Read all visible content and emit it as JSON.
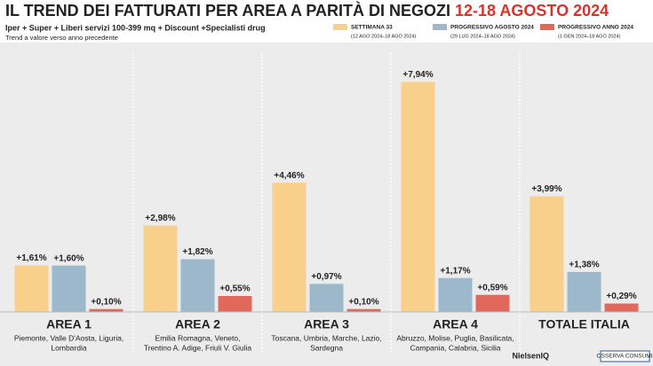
{
  "chart_data": {
    "type": "bar",
    "title": "IL TREND DEI FATTURATI PER AREA A PARITÀ DI NEGOZI",
    "title_highlight": "12-18 AGOSTO 2024",
    "subtitle": "Iper + Super + Liberi servizi 100-399 mq + Discount +Specialisti drug",
    "note": "Trend a valore verso anno precedente",
    "categories": [
      "AREA 1",
      "AREA 2",
      "AREA 3",
      "AREA 4",
      "TOTALE ITALIA"
    ],
    "regions": [
      [
        "Piemonte, Valle D'Aosta, Liguria,",
        "Lombardia"
      ],
      [
        "Emilia Romagna, Veneto,",
        "Trentino A. Adige, Friuli V. Giulia"
      ],
      [
        "Toscana, Umbria, Marche, Lazio,",
        "Sardegna"
      ],
      [
        "Abruzzo, Molise, Puglia, Basilicata,",
        "Campania, Calabria, Sicilia"
      ],
      []
    ],
    "series": [
      {
        "name": "SETTIMANA 33",
        "period": "(12 AGO 2024–18 AGO 2024)",
        "color": "#f8cf8b",
        "values": [
          1.61,
          2.98,
          4.46,
          7.94,
          3.99
        ],
        "value_labels": [
          "+1,61%",
          "+2,98%",
          "+4,46%",
          "+7,94%",
          "+3,99%"
        ]
      },
      {
        "name": "PROGRESSIVO AGOSTO 2024",
        "period": "(29 LUG 2024–18 AGO 2024)",
        "color": "#9db8cb",
        "values": [
          1.6,
          1.82,
          0.97,
          1.17,
          1.38
        ],
        "value_labels": [
          "+1,60%",
          "+1,82%",
          "+0,97%",
          "+1,17%",
          "+1,38%"
        ]
      },
      {
        "name": "PROGRESSIVO ANNO 2024",
        "period": "(1 GEN 2024–18 AGO 2024)",
        "color": "#e2685c",
        "values": [
          0.1,
          0.55,
          0.1,
          0.59,
          0.29
        ],
        "value_labels": [
          "+0,10%",
          "+0,55%",
          "+0,10%",
          "+0,59%",
          "+0,29%"
        ]
      }
    ],
    "ylim": [
      0,
      8.2
    ],
    "sources": [
      "NielsenIQ",
      "OSSERVA CONSUMI"
    ]
  }
}
